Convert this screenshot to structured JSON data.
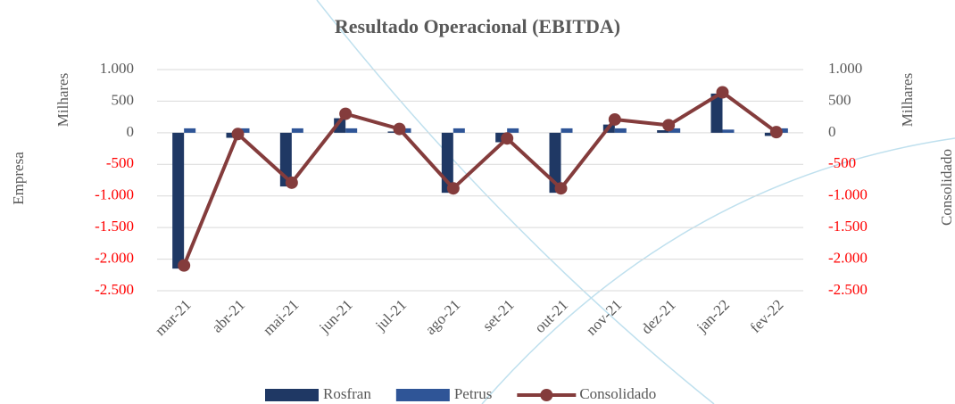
{
  "chart_data": {
    "type": "bar",
    "title": "Resultado Operacional (EBITDA)",
    "y_label": "Empresa",
    "y2_label": "Consolidado",
    "y_units_label": "Milhares",
    "y2_units_label": "Milhares",
    "categories": [
      "mar-21",
      "abr-21",
      "mai-21",
      "jun-21",
      "jul-21",
      "ago-21",
      "set-21",
      "out-21",
      "nov-21",
      "dez-21",
      "jan-22",
      "fev-22"
    ],
    "series": [
      {
        "name": "Rosfran",
        "type": "bar",
        "color": "#1f3864",
        "values": [
          -2150,
          -80,
          -850,
          230,
          20,
          -950,
          -150,
          -950,
          130,
          40,
          620,
          -50
        ]
      },
      {
        "name": "Petrus",
        "type": "bar",
        "color": "#2f5597",
        "values": [
          70,
          70,
          70,
          70,
          70,
          70,
          70,
          70,
          70,
          70,
          50,
          70
        ]
      },
      {
        "name": "Consolidado",
        "type": "line",
        "axis": "y2",
        "color": "#843c3c",
        "values": [
          -2100,
          -20,
          -790,
          300,
          60,
          -880,
          -90,
          -880,
          210,
          120,
          640,
          10
        ]
      }
    ],
    "ylim": [
      -2500,
      1000
    ],
    "yticks": [
      {
        "value": 1000,
        "label": "1.000"
      },
      500,
      0,
      -500,
      {
        "value": -1000,
        "label": "-1.000"
      },
      {
        "value": -1500,
        "label": "-1.500"
      },
      {
        "value": -2000,
        "label": "-2.000"
      },
      {
        "value": -2500,
        "label": "-2.500"
      }
    ],
    "y2lim": [
      -2500,
      1000
    ],
    "y2ticks": [
      {
        "value": 1000,
        "label": "1.000"
      },
      500,
      0,
      -500,
      {
        "value": -1000,
        "label": "-1.000"
      },
      {
        "value": -1500,
        "label": "-1.500"
      },
      {
        "value": -2000,
        "label": "-2.000"
      },
      {
        "value": -2500,
        "label": "-2.500"
      }
    ],
    "negative_tick_color": "#ff0000",
    "grid": true,
    "legend": "bottom"
  }
}
